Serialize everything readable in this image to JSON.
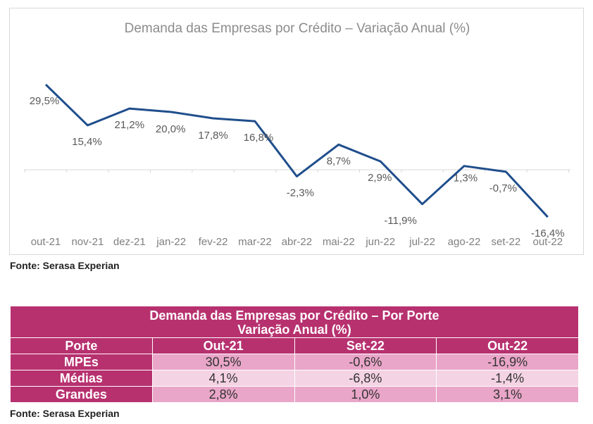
{
  "chart_data": {
    "type": "line",
    "title": "Demanda das Empresas por Crédito – Variação Anual (%)",
    "categories": [
      "out-21",
      "nov-21",
      "dez-21",
      "jan-22",
      "fev-22",
      "mar-22",
      "abr-22",
      "mai-22",
      "jun-22",
      "jul-22",
      "ago-22",
      "set-22",
      "out-22"
    ],
    "series": [
      {
        "values": [
          29.5,
          15.4,
          21.2,
          20.0,
          17.8,
          16.8,
          -2.3,
          8.7,
          2.9,
          -11.9,
          1.3,
          -0.7,
          -16.4
        ]
      }
    ],
    "data_labels": [
      "29,5%",
      "15,4%",
      "21,2%",
      "20,0%",
      "17,8%",
      "16,8%",
      "-2,3%",
      "8,7%",
      "2,9%",
      "-11,9%",
      "1,3%",
      "-0,7%",
      "-16,4%"
    ],
    "ylim": [
      -20,
      35
    ],
    "line_color": "#1f4e8c",
    "grid": false
  },
  "chart_source": "Fonte: Serasa Experian",
  "table": {
    "title_line1": "Demanda das Empresas por Crédito – Por Porte",
    "title_line2": "Variação Anual (%)",
    "headers": [
      "Porte",
      "Out-21",
      "Set-22",
      "Out-22"
    ],
    "rows": [
      {
        "label": "MPEs",
        "values": [
          "30,5%",
          "-0,6%",
          "-16,9%"
        ]
      },
      {
        "label": "Médias",
        "values": [
          "4,1%",
          "-6,8%",
          "-1,4%"
        ]
      },
      {
        "label": "Grandes",
        "values": [
          "2,8%",
          "1,0%",
          "3,1%"
        ]
      }
    ],
    "colors": {
      "header": "#b7316f",
      "row_dark": "#e9a6c8",
      "row_light": "#f4d3e4"
    }
  },
  "table_source": "Fonte: Serasa Experian"
}
